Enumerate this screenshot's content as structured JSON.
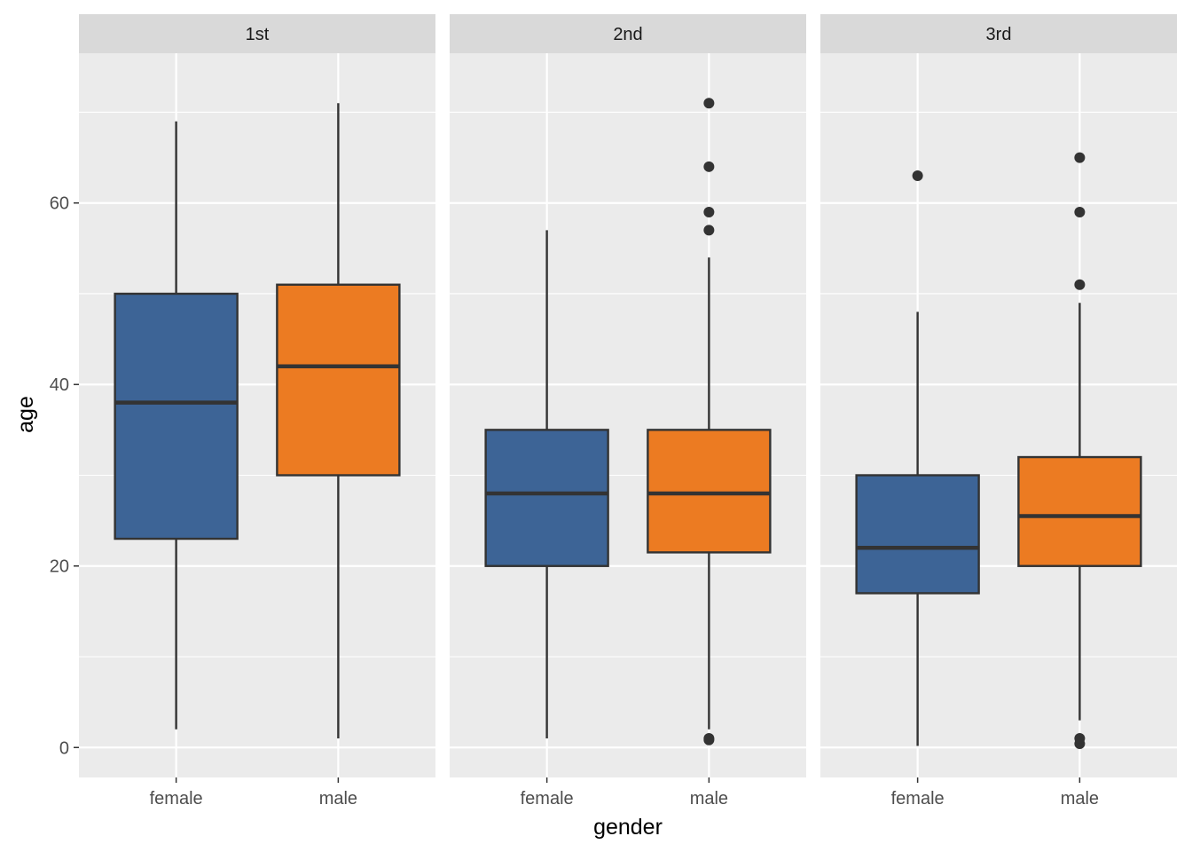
{
  "chart_data": {
    "type": "boxplot",
    "xlabel": "gender",
    "ylabel": "age",
    "ylim": [
      -3.3,
      76.5
    ],
    "y_ticks": [
      0,
      20,
      40,
      60
    ],
    "y_tick_labels": [
      "0",
      "20",
      "40",
      "60"
    ],
    "categories": [
      "female",
      "male"
    ],
    "colors": {
      "female": "#3d6496",
      "male": "#ec7b22"
    },
    "grid": true,
    "panels": [
      {
        "label": "1st",
        "boxes": [
          {
            "category": "female",
            "whisker_low": 2,
            "q1": 23,
            "median": 38,
            "q3": 50,
            "whisker_high": 69,
            "outliers": []
          },
          {
            "category": "male",
            "whisker_low": 1,
            "q1": 30,
            "median": 42,
            "q3": 51,
            "whisker_high": 71,
            "outliers": []
          }
        ]
      },
      {
        "label": "2nd",
        "boxes": [
          {
            "category": "female",
            "whisker_low": 1,
            "q1": 20,
            "median": 28,
            "q3": 35,
            "whisker_high": 57,
            "outliers": []
          },
          {
            "category": "male",
            "whisker_low": 2,
            "q1": 21.5,
            "median": 28,
            "q3": 35,
            "whisker_high": 54,
            "outliers": [
              57,
              59,
              64,
              71,
              0.83,
              1
            ]
          }
        ]
      },
      {
        "label": "3rd",
        "boxes": [
          {
            "category": "female",
            "whisker_low": 0.17,
            "q1": 17,
            "median": 22,
            "q3": 30,
            "whisker_high": 48,
            "outliers": [
              63
            ]
          },
          {
            "category": "male",
            "whisker_low": 3,
            "q1": 20,
            "median": 25.5,
            "q3": 32,
            "whisker_high": 49,
            "outliers": [
              51,
              59,
              65,
              0.42,
              1
            ]
          }
        ]
      }
    ]
  }
}
